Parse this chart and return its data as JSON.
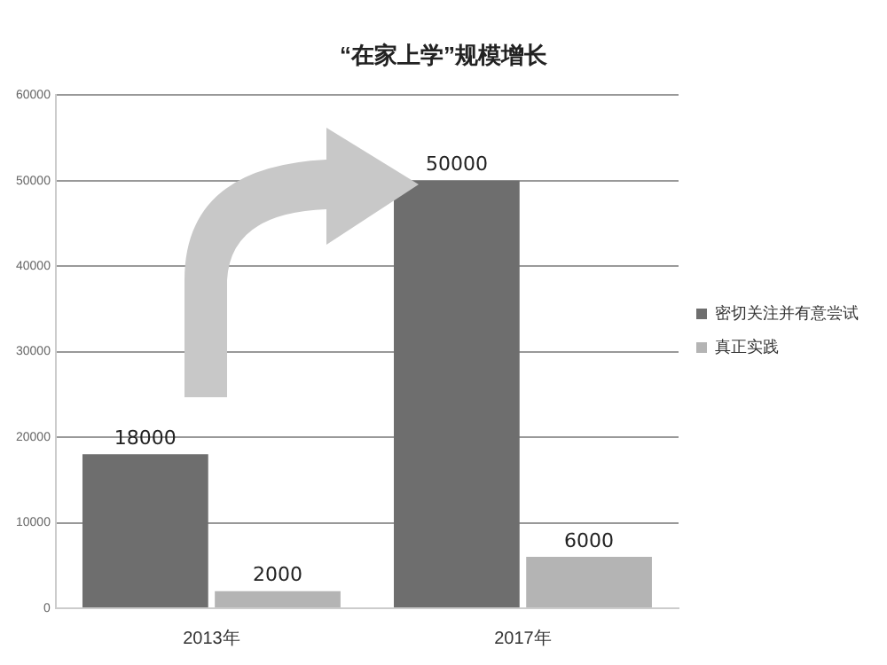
{
  "chart_data": {
    "type": "bar",
    "title": "“在家上学”规模增长",
    "categories": [
      "2013年",
      "2017年"
    ],
    "series": [
      {
        "name": "密切关注并有意尝试",
        "color": "#6e6e6e",
        "values": [
          18000,
          50000
        ]
      },
      {
        "name": "真正实践",
        "color": "#b4b4b4",
        "values": [
          2000,
          6000
        ]
      }
    ],
    "ylim": [
      0,
      60000
    ],
    "yticks": [
      0,
      10000,
      20000,
      30000,
      40000,
      50000,
      60000
    ],
    "grid": "y",
    "legend": "right",
    "data_labels": true
  }
}
